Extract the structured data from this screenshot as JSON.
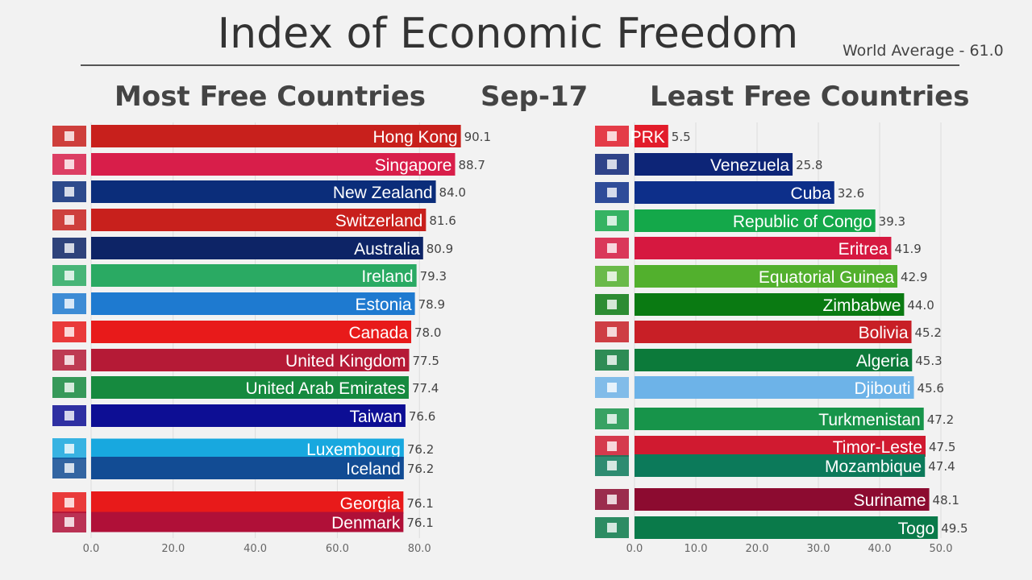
{
  "title": "Index of Economic Freedom",
  "world_average": "World Average - 61.0",
  "date": "Sep-17",
  "chart_data": [
    {
      "type": "bar",
      "title": "Most Free Countries",
      "orientation": "horizontal",
      "xlim": [
        0,
        80
      ],
      "x_ticks": [
        "0.0",
        "20.0",
        "40.0",
        "60.0",
        "80.0"
      ],
      "grid": true,
      "categories": [
        "Hong Kong",
        "Singapore",
        "New Zealand",
        "Switzerland",
        "Australia",
        "Ireland",
        "Estonia",
        "Canada",
        "United Kingdom",
        "United Arab Emirates",
        "Taiwan",
        "Luxembourg",
        "Iceland",
        "Georgia",
        "Denmark"
      ],
      "values": [
        90.1,
        88.7,
        84.0,
        81.6,
        80.9,
        79.3,
        78.9,
        78.0,
        77.5,
        77.4,
        76.6,
        76.2,
        76.2,
        76.1,
        76.1
      ],
      "value_labels": [
        "90.1",
        "88.7",
        "84.0",
        "81.6",
        "80.9",
        "79.3",
        "78.9",
        "78.0",
        "77.5",
        "77.4",
        "76.6",
        "76.2",
        "76.2",
        "76.1",
        "76.1"
      ],
      "colors": [
        "#c8201c",
        "#d81e4a",
        "#0b2d7a",
        "#c8201c",
        "#0d2466",
        "#2aaa63",
        "#1e7ad0",
        "#e81a1a",
        "#b51a36",
        "#168a3f",
        "#0d0e94",
        "#18a8df",
        "#124c94",
        "#e81a1a",
        "#b01038"
      ]
    },
    {
      "type": "bar",
      "title": "Least Free Countries",
      "orientation": "horizontal",
      "xlim": [
        0,
        50
      ],
      "x_ticks": [
        "0.0",
        "10.0",
        "20.0",
        "30.0",
        "40.0",
        "50.0"
      ],
      "grid": true,
      "categories": [
        "PRK",
        "Venezuela",
        "Cuba",
        "Republic of Congo",
        "Eritrea",
        "Equatorial Guinea",
        "Zimbabwe",
        "Bolivia",
        "Algeria",
        "Djibouti",
        "Turkmenistan",
        "Timor-Leste",
        "Mozambique",
        "Suriname",
        "Togo"
      ],
      "values": [
        5.5,
        25.8,
        32.6,
        39.3,
        41.9,
        42.9,
        44.0,
        45.2,
        45.3,
        45.6,
        47.2,
        47.5,
        47.4,
        48.1,
        49.5
      ],
      "value_labels": [
        "5.5",
        "25.8",
        "32.6",
        "39.3",
        "41.9",
        "42.9",
        "44.0",
        "45.2",
        "45.3",
        "45.6",
        "47.2",
        "47.5",
        "47.4",
        "48.1",
        "49.5"
      ],
      "colors": [
        "#e21c2a",
        "#0d2577",
        "#0d2f8a",
        "#14a84a",
        "#d61840",
        "#52b02d",
        "#0a7a12",
        "#c81f26",
        "#0c7a3a",
        "#6db3e8",
        "#17944a",
        "#d01a30",
        "#0c7a5a",
        "#8c0b30",
        "#0a7a4a"
      ]
    }
  ]
}
